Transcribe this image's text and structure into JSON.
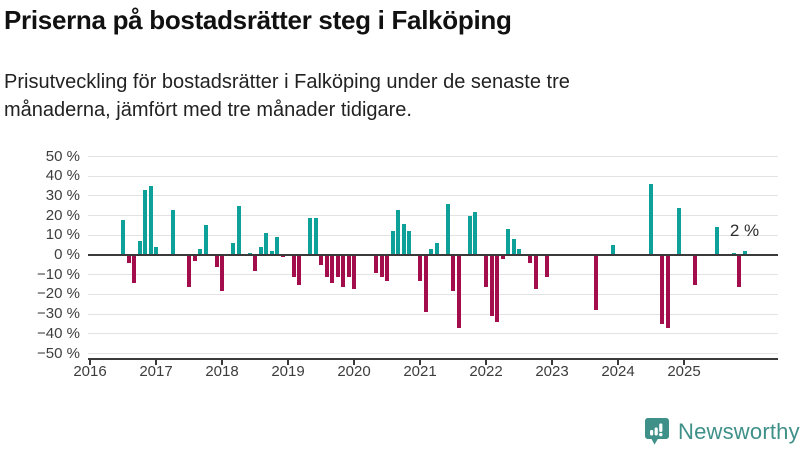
{
  "header": {
    "title": "Priserna på bostadsrätter steg i Falköping",
    "subtitle_line1": "Prisutveckling för bostadsrätter i Falköping under de senaste tre",
    "subtitle_line2": "månaderna, jämfört med tre månader tidigare."
  },
  "chart_data": {
    "type": "bar",
    "title": "Priserna på bostadsrätter steg i Falköping",
    "subtitle": "Prisutveckling för bostadsrätter i Falköping under de senaste tre månaderna, jämfört med tre månader tidigare.",
    "unit": "%",
    "grid": "horizontal",
    "legend": "none",
    "ylim": [
      -50,
      50
    ],
    "y_axis": {
      "tick_values": [
        50,
        40,
        30,
        20,
        10,
        0,
        -10,
        -20,
        -30,
        -40,
        -50
      ],
      "tick_labels": [
        "50 %",
        "40 %",
        "30 %",
        "20 %",
        "10 %",
        "0 %",
        "−10 %",
        "−20 %",
        "−30 %",
        "−40 %",
        "−50 %"
      ]
    },
    "x_axis": {
      "tick_years": [
        "2016",
        "2017",
        "2018",
        "2019",
        "2020",
        "2021",
        "2022",
        "2023",
        "2024",
        "2025"
      ]
    },
    "annotation": {
      "text": "2 %",
      "month": "2025-12"
    },
    "points": [
      {
        "month": "2016-07",
        "value": 18
      },
      {
        "month": "2016-08",
        "value": -4
      },
      {
        "month": "2016-09",
        "value": -14
      },
      {
        "month": "2016-10",
        "value": 7
      },
      {
        "month": "2016-11",
        "value": 33
      },
      {
        "month": "2016-12",
        "value": 35
      },
      {
        "month": "2017-01",
        "value": 4
      },
      {
        "month": "2017-04",
        "value": 23
      },
      {
        "month": "2017-07",
        "value": -16
      },
      {
        "month": "2017-08",
        "value": -3
      },
      {
        "month": "2017-09",
        "value": 3
      },
      {
        "month": "2017-10",
        "value": 15
      },
      {
        "month": "2017-12",
        "value": -6
      },
      {
        "month": "2018-01",
        "value": -18
      },
      {
        "month": "2018-03",
        "value": 6
      },
      {
        "month": "2018-04",
        "value": 25
      },
      {
        "month": "2018-06",
        "value": 1
      },
      {
        "month": "2018-07",
        "value": -8
      },
      {
        "month": "2018-08",
        "value": 4
      },
      {
        "month": "2018-09",
        "value": 11
      },
      {
        "month": "2018-10",
        "value": 2
      },
      {
        "month": "2018-11",
        "value": 9
      },
      {
        "month": "2018-12",
        "value": -1
      },
      {
        "month": "2019-02",
        "value": -11
      },
      {
        "month": "2019-03",
        "value": -15
      },
      {
        "month": "2019-05",
        "value": 19
      },
      {
        "month": "2019-06",
        "value": 19
      },
      {
        "month": "2019-07",
        "value": -5
      },
      {
        "month": "2019-08",
        "value": -11
      },
      {
        "month": "2019-09",
        "value": -14
      },
      {
        "month": "2019-10",
        "value": -11
      },
      {
        "month": "2019-11",
        "value": -16
      },
      {
        "month": "2019-12",
        "value": -11
      },
      {
        "month": "2020-01",
        "value": -17
      },
      {
        "month": "2020-05",
        "value": -9
      },
      {
        "month": "2020-06",
        "value": -11
      },
      {
        "month": "2020-07",
        "value": -13
      },
      {
        "month": "2020-08",
        "value": 12
      },
      {
        "month": "2020-09",
        "value": 23
      },
      {
        "month": "2020-10",
        "value": 16
      },
      {
        "month": "2020-11",
        "value": 12
      },
      {
        "month": "2021-01",
        "value": -13
      },
      {
        "month": "2021-02",
        "value": -29
      },
      {
        "month": "2021-03",
        "value": 3
      },
      {
        "month": "2021-04",
        "value": 6
      },
      {
        "month": "2021-06",
        "value": 26
      },
      {
        "month": "2021-07",
        "value": -18
      },
      {
        "month": "2021-08",
        "value": -37
      },
      {
        "month": "2021-10",
        "value": 20
      },
      {
        "month": "2021-11",
        "value": 22
      },
      {
        "month": "2022-01",
        "value": -16
      },
      {
        "month": "2022-02",
        "value": -31
      },
      {
        "month": "2022-03",
        "value": -34
      },
      {
        "month": "2022-04",
        "value": -2
      },
      {
        "month": "2022-05",
        "value": 13
      },
      {
        "month": "2022-06",
        "value": 8
      },
      {
        "month": "2022-07",
        "value": 3
      },
      {
        "month": "2022-09",
        "value": -4
      },
      {
        "month": "2022-10",
        "value": -17
      },
      {
        "month": "2022-12",
        "value": -11
      },
      {
        "month": "2023-09",
        "value": -28
      },
      {
        "month": "2023-12",
        "value": 5
      },
      {
        "month": "2024-07",
        "value": 36
      },
      {
        "month": "2024-09",
        "value": -35
      },
      {
        "month": "2024-10",
        "value": -37
      },
      {
        "month": "2024-12",
        "value": 24
      },
      {
        "month": "2025-03",
        "value": -15
      },
      {
        "month": "2025-07",
        "value": 14
      },
      {
        "month": "2025-10",
        "value": 1
      },
      {
        "month": "2025-11",
        "value": -16
      },
      {
        "month": "2025-12",
        "value": 2
      }
    ]
  },
  "colors": {
    "positive": "#0ea19a",
    "negative": "#a40d4b",
    "grid": "#e3e3e3",
    "axis": "#3a3a3a",
    "tick_label": "#3d3d3d",
    "text": "#111111",
    "brand": "#3f9089"
  },
  "footer": {
    "brand": "Newsworthy"
  }
}
